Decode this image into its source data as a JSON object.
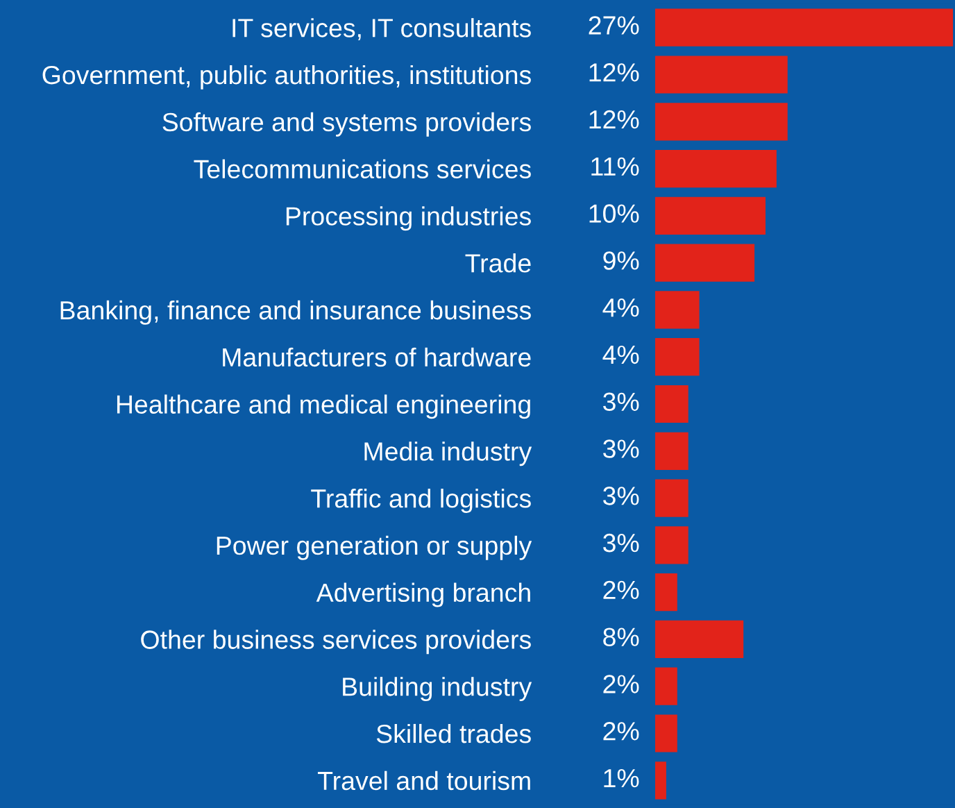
{
  "chart_data": {
    "type": "bar",
    "orientation": "horizontal",
    "categories": [
      "IT services, IT consultants",
      "Government, public authorities, institutions",
      "Software and systems providers",
      "Telecommunications services",
      "Processing industries",
      "Trade",
      "Banking, finance and insurance business",
      "Manufacturers of hardware",
      "Healthcare and medical engineering",
      "Media industry",
      "Traffic and logistics",
      "Power generation or supply",
      "Advertising branch",
      "Other business services providers",
      "Building industry",
      "Skilled trades",
      "Travel and tourism"
    ],
    "values": [
      27,
      12,
      12,
      11,
      10,
      9,
      4,
      4,
      3,
      3,
      3,
      3,
      2,
      8,
      2,
      2,
      1
    ],
    "value_labels": [
      "27%",
      "12%",
      "12%",
      "11%",
      "10%",
      "9%",
      "4%",
      "4%",
      "3%",
      "3%",
      "3%",
      "3%",
      "2%",
      "8%",
      "2%",
      "2%",
      "1%"
    ],
    "color": "#e2231a",
    "grid": false,
    "legend": false
  }
}
